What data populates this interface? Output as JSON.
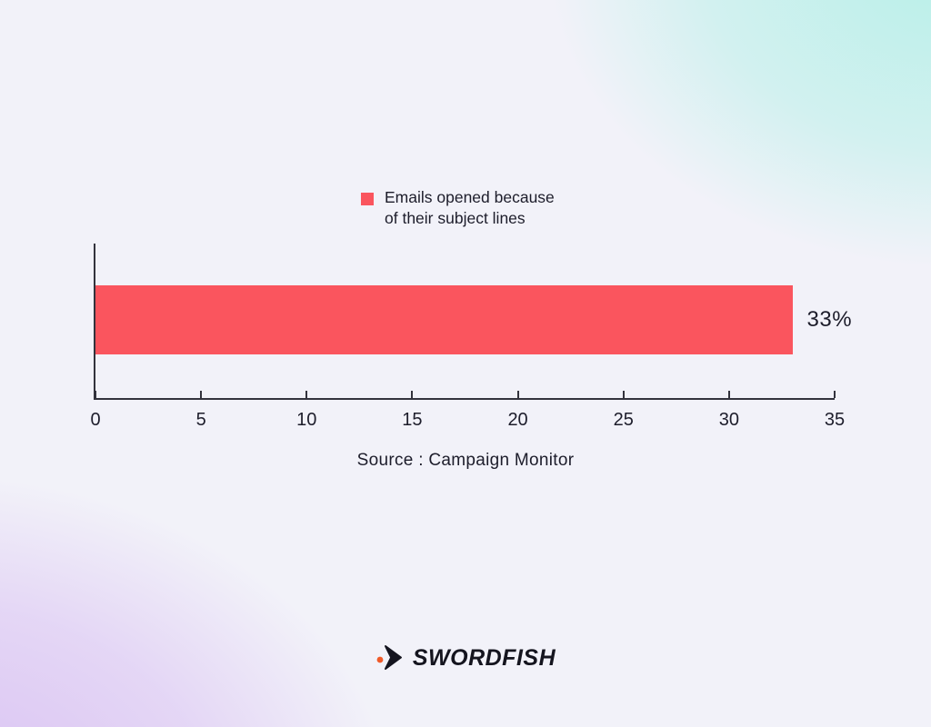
{
  "colors": {
    "bar": "#fa555e",
    "text": "#1d1d2b",
    "axis": "#33333d",
    "background_base": "#f2f2f9",
    "background_teal_glow": "#b7f0e8",
    "background_purple_glow": "#d8bff2",
    "logo_dark": "#15151f",
    "logo_dot_orange": "#f05a28"
  },
  "legend": {
    "swatch_color": "#fa555e",
    "line1": "Emails opened because",
    "line2": "of their subject lines"
  },
  "chart_data": {
    "type": "bar",
    "orientation": "horizontal",
    "categories": [
      "Emails opened because of their subject lines"
    ],
    "values": [
      33
    ],
    "value_labels": [
      "33%"
    ],
    "xlim": [
      0,
      35
    ],
    "xticks": [
      0,
      5,
      10,
      15,
      20,
      25,
      30,
      35
    ],
    "xlabel": "",
    "ylabel": "",
    "grid": false,
    "legend_entries": [
      "Emails opened because of their subject lines"
    ],
    "legend_position": "top-center",
    "bar_color": "#fa555e",
    "source": "Source : Campaign Monitor"
  },
  "footer": {
    "brand": "SWORDFISH"
  }
}
